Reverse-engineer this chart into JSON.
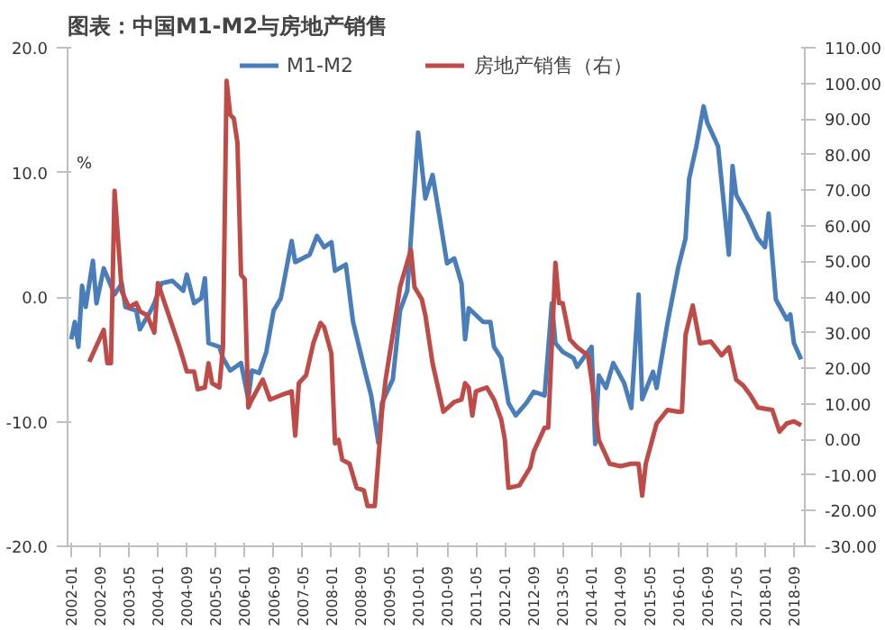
{
  "chart_data": {
    "type": "line",
    "title": "图表：中国M1-M2与房地产销售",
    "ylabel": "%",
    "legend": "top",
    "grid": false,
    "marker": "none",
    "line_style": "solid",
    "xlim": [
      "2001-12",
      "2018-12"
    ],
    "xticks": [
      "2002-01",
      "2002-09",
      "2003-05",
      "2004-01",
      "2004-09",
      "2005-05",
      "2006-01",
      "2006-09",
      "2007-05",
      "2008-01",
      "2008-09",
      "2009-05",
      "2010-01",
      "2010-09",
      "2011-05",
      "2012-01",
      "2012-09",
      "2013-05",
      "2014-01",
      "2014-09",
      "2015-05",
      "2016-01",
      "2016-09",
      "2017-05",
      "2018-01",
      "2018-09"
    ],
    "ylim": [
      -20,
      20
    ],
    "yticks": [
      {
        "value": -20,
        "label": "-20.0"
      },
      {
        "value": -10,
        "label": "-10.0"
      },
      {
        "value": 0,
        "label": "0.0"
      },
      {
        "value": 10,
        "label": "10.0"
      },
      {
        "value": 20,
        "label": "20.0"
      }
    ],
    "y2lim": [
      -30,
      110
    ],
    "y2ticks": [
      {
        "value": -30,
        "label": "-30.00"
      },
      {
        "value": -20,
        "label": "-20.00"
      },
      {
        "value": -10,
        "label": "-10.00"
      },
      {
        "value": 0,
        "label": "0.00"
      },
      {
        "value": 10,
        "label": "10.00"
      },
      {
        "value": 20,
        "label": "20.00"
      },
      {
        "value": 30,
        "label": "30.00"
      },
      {
        "value": 40,
        "label": "40.00"
      },
      {
        "value": 50,
        "label": "50.00"
      },
      {
        "value": 60,
        "label": "60.00"
      },
      {
        "value": 70,
        "label": "70.00"
      },
      {
        "value": 80,
        "label": "80.00"
      },
      {
        "value": 90,
        "label": "90.00"
      },
      {
        "value": 100,
        "label": "100.00"
      },
      {
        "value": 110,
        "label": "110.00"
      }
    ],
    "series": [
      {
        "name": "M1-M2",
        "color": "#4a7ebb",
        "x": [
          "2002-01",
          "2002-02",
          "2002-03",
          "2002-04",
          "2002-05",
          "2002-07",
          "2002-08",
          "2002-10",
          "2003-01",
          "2003-03",
          "2003-04",
          "2003-07",
          "2003-08",
          "2003-11",
          "2003-12",
          "2004-02",
          "2004-05",
          "2004-08",
          "2004-09",
          "2004-11",
          "2005-01",
          "2005-02",
          "2005-03",
          "2005-06",
          "2005-07",
          "2005-09",
          "2005-12",
          "2006-02",
          "2006-03",
          "2006-05",
          "2006-07",
          "2006-09",
          "2006-11",
          "2007-02",
          "2007-03",
          "2007-07",
          "2007-09",
          "2007-11",
          "2008-01",
          "2008-02",
          "2008-05",
          "2008-07",
          "2008-10",
          "2008-12",
          "2009-02",
          "2009-03",
          "2009-06",
          "2009-08",
          "2009-10",
          "2009-11",
          "2010-01",
          "2010-03",
          "2010-05",
          "2010-07",
          "2010-09",
          "2010-11",
          "2011-01",
          "2011-02",
          "2011-03",
          "2011-07",
          "2011-09",
          "2011-10",
          "2011-12",
          "2012-02",
          "2012-04",
          "2012-07",
          "2012-09",
          "2012-12",
          "2013-02",
          "2013-03",
          "2013-05",
          "2013-08",
          "2013-09",
          "2014-01",
          "2014-02",
          "2014-03",
          "2014-05",
          "2014-07",
          "2014-10",
          "2014-12",
          "2015-02",
          "2015-03",
          "2015-06",
          "2015-07",
          "2015-10",
          "2016-01",
          "2016-03",
          "2016-04",
          "2016-06",
          "2016-08",
          "2016-09",
          "2016-12",
          "2017-03",
          "2017-04",
          "2017-05",
          "2017-08",
          "2017-11",
          "2018-01",
          "2018-02",
          "2018-04",
          "2018-07",
          "2018-08",
          "2018-09",
          "2018-11"
        ],
        "values": [
          -3.4,
          -2.0,
          -4.0,
          0.9,
          -0.8,
          2.9,
          -0.5,
          2.3,
          0.2,
          1.1,
          -0.8,
          -1.1,
          -2.6,
          -1.1,
          -0.5,
          1.1,
          1.3,
          0.5,
          1.8,
          -0.5,
          -0.1,
          1.5,
          -3.7,
          -4.0,
          -4.9,
          -5.9,
          -5.3,
          -8.2,
          -5.9,
          -6.1,
          -4.4,
          -1.1,
          -0.1,
          4.5,
          2.8,
          3.4,
          4.9,
          4.0,
          4.4,
          2.1,
          2.6,
          -2.0,
          -5.6,
          -7.9,
          -11.7,
          -8.5,
          -6.6,
          -1.1,
          0.5,
          4.7,
          13.2,
          7.9,
          9.8,
          6.3,
          2.7,
          3.1,
          1.1,
          -3.4,
          -0.9,
          -2.0,
          -2.0,
          -4.0,
          -4.9,
          -8.5,
          -9.5,
          -8.5,
          -7.6,
          -7.9,
          -0.5,
          -3.7,
          -4.4,
          -4.9,
          -5.6,
          -4.0,
          -11.8,
          -6.3,
          -7.3,
          -5.3,
          -6.9,
          -8.9,
          0.2,
          -8.2,
          -6.0,
          -7.3,
          -2.1,
          2.4,
          4.7,
          9.5,
          12.1,
          15.3,
          14.0,
          12.1,
          3.4,
          10.5,
          8.2,
          6.6,
          4.7,
          4.0,
          6.7,
          -0.2,
          -1.8,
          -1.4,
          -3.7,
          -5.0
        ]
      },
      {
        "name": "房地产销售（右）",
        "color": "#be4b48",
        "axis": "y2",
        "x": [
          "2002-06",
          "2002-10",
          "2002-11",
          "2002-12",
          "2003-01",
          "2003-03",
          "2003-05",
          "2003-07",
          "2003-08",
          "2003-10",
          "2003-12",
          "2004-01",
          "2004-04",
          "2004-07",
          "2004-09",
          "2004-11",
          "2004-12",
          "2005-02",
          "2005-03",
          "2005-04",
          "2005-06",
          "2005-07",
          "2005-08",
          "2005-09",
          "2005-10",
          "2005-11",
          "2005-12",
          "2006-01",
          "2006-02",
          "2006-03",
          "2006-06",
          "2006-08",
          "2006-11",
          "2007-02",
          "2007-03",
          "2007-04",
          "2007-06",
          "2007-08",
          "2007-10",
          "2007-11",
          "2008-01",
          "2008-02",
          "2008-03",
          "2008-04",
          "2008-06",
          "2008-08",
          "2008-10",
          "2008-11",
          "2009-01",
          "2009-03",
          "2009-04",
          "2009-07",
          "2009-08",
          "2009-11",
          "2009-12",
          "2010-02",
          "2010-03",
          "2010-05",
          "2010-08",
          "2010-11",
          "2011-01",
          "2011-02",
          "2011-03",
          "2011-04",
          "2011-05",
          "2011-08",
          "2011-10",
          "2011-12",
          "2012-01",
          "2012-02",
          "2012-05",
          "2012-08",
          "2012-09",
          "2012-12",
          "2013-01",
          "2013-03",
          "2013-04",
          "2013-05",
          "2013-07",
          "2013-09",
          "2013-12",
          "2014-01",
          "2014-03",
          "2014-06",
          "2014-09",
          "2014-12",
          "2015-02",
          "2015-03",
          "2015-04",
          "2015-07",
          "2015-10",
          "2016-01",
          "2016-02",
          "2016-03",
          "2016-05",
          "2016-07",
          "2016-10",
          "2017-01",
          "2017-03",
          "2017-05",
          "2017-07",
          "2017-09",
          "2017-11",
          "2018-03",
          "2018-05",
          "2018-07",
          "2018-09",
          "2018-11"
        ],
        "values": [
          21.8,
          30.8,
          21.4,
          21.4,
          69.8,
          41.6,
          37.1,
          38.3,
          36.0,
          34.9,
          30.0,
          43.9,
          34.9,
          25.9,
          19.1,
          19.1,
          14.1,
          14.6,
          21.4,
          15.8,
          14.6,
          25.9,
          100.7,
          91.2,
          90.1,
          83.4,
          46.2,
          45.0,
          9.0,
          11.2,
          16.8,
          11.2,
          12.4,
          13.5,
          1.1,
          15.8,
          18.0,
          27.0,
          32.7,
          31.5,
          24.1,
          -1.1,
          -0.1,
          -5.7,
          -6.8,
          -13.6,
          -14.3,
          -18.7,
          -18.7,
          7.8,
          16.8,
          36.0,
          42.8,
          53.3,
          42.8,
          39.4,
          34.9,
          21.4,
          7.8,
          10.5,
          11.2,
          15.8,
          14.6,
          6.7,
          13.5,
          14.6,
          11.2,
          5.6,
          -0.1,
          -13.6,
          -12.9,
          -7.9,
          -3.4,
          3.3,
          3.3,
          49.6,
          38.3,
          38.3,
          28.1,
          25.9,
          23.6,
          16.8,
          -0.1,
          -6.8,
          -7.5,
          -6.8,
          -6.8,
          -15.8,
          -6.8,
          4.5,
          8.3,
          7.8,
          7.8,
          29.3,
          37.6,
          27.0,
          27.5,
          23.6,
          25.9,
          16.8,
          15.1,
          12.4,
          9.0,
          8.3,
          2.2,
          4.5,
          5.1,
          4.0
        ]
      }
    ]
  }
}
